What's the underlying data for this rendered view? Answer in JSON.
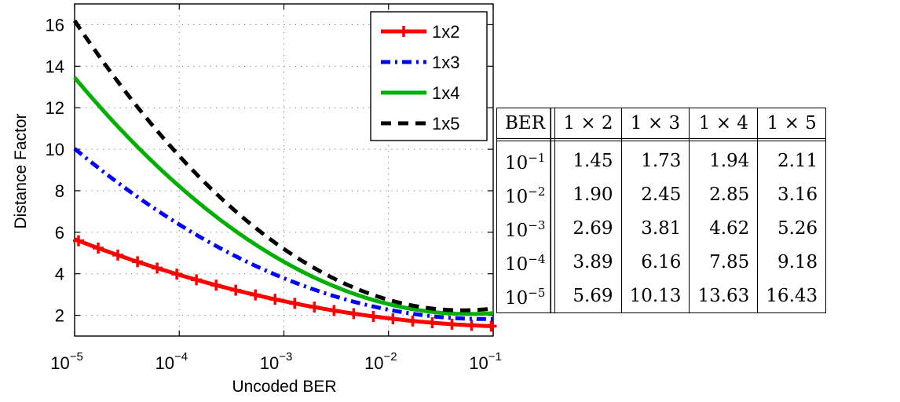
{
  "chart_data": {
    "type": "line",
    "xlabel": "Uncoded BER",
    "ylabel": "Distance Factor",
    "x_scale": "log",
    "xlim": [
      1e-05,
      0.1
    ],
    "ylim": [
      1,
      17
    ],
    "xticks": [
      {
        "value": 1e-05,
        "base": "10",
        "exp": "−5"
      },
      {
        "value": 0.0001,
        "base": "10",
        "exp": "−4"
      },
      {
        "value": 0.001,
        "base": "10",
        "exp": "−3"
      },
      {
        "value": 0.01,
        "base": "10",
        "exp": "−2"
      },
      {
        "value": 0.1,
        "base": "10",
        "exp": "−1"
      }
    ],
    "yticks": [
      2,
      4,
      6,
      8,
      10,
      12,
      14,
      16
    ],
    "grid": true,
    "legend_position": "top-right",
    "series": [
      {
        "name": "1x2",
        "color": "#ff0000",
        "style": "solid-plus",
        "x": [
          1e-05,
          0.0001,
          0.001,
          0.01,
          0.1
        ],
        "y": [
          5.69,
          3.89,
          2.69,
          1.9,
          1.45
        ]
      },
      {
        "name": "1x3",
        "color": "#0000ff",
        "style": "dashdot",
        "x": [
          1e-05,
          0.0001,
          0.001,
          0.01,
          0.1
        ],
        "y": [
          10.13,
          6.16,
          3.81,
          2.45,
          1.73
        ]
      },
      {
        "name": "1x4",
        "color": "#00b000",
        "style": "solid",
        "x": [
          1e-05,
          0.0001,
          0.001,
          0.01,
          0.1
        ],
        "y": [
          13.63,
          7.85,
          4.62,
          2.85,
          1.94
        ]
      },
      {
        "name": "1x5",
        "color": "#000000",
        "style": "dashed",
        "x": [
          1e-05,
          0.0001,
          0.001,
          0.01,
          0.1
        ],
        "y": [
          16.43,
          9.18,
          5.26,
          3.16,
          2.11
        ]
      }
    ]
  },
  "table": {
    "header": [
      "BER",
      "1 × 2",
      "1 × 3",
      "1 × 4",
      "1 × 5"
    ],
    "rows": [
      {
        "base": "10",
        "exp": "−1",
        "values": [
          "1.45",
          "1.73",
          "1.94",
          "2.11"
        ]
      },
      {
        "base": "10",
        "exp": "−2",
        "values": [
          "1.90",
          "2.45",
          "2.85",
          "3.16"
        ]
      },
      {
        "base": "10",
        "exp": "−3",
        "values": [
          "2.69",
          "3.81",
          "4.62",
          "5.26"
        ]
      },
      {
        "base": "10",
        "exp": "−4",
        "values": [
          "3.89",
          "6.16",
          "7.85",
          "9.18"
        ]
      },
      {
        "base": "10",
        "exp": "−5",
        "values": [
          "5.69",
          "10.13",
          "13.63",
          "16.43"
        ]
      }
    ]
  }
}
